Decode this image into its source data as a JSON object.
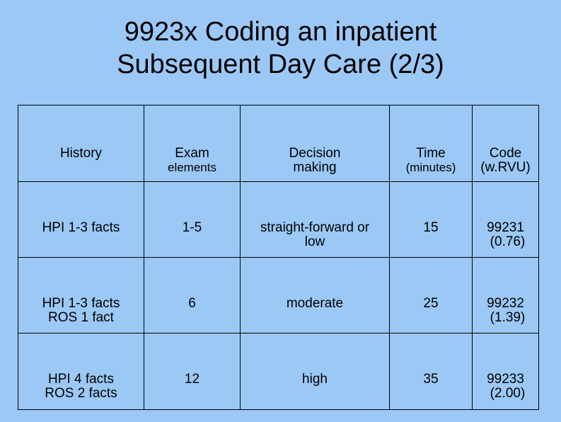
{
  "title": {
    "line1": "9923x Coding an inpatient",
    "line2": "Subsequent Day Care (2/3)"
  },
  "table": {
    "headers": [
      {
        "main": "History",
        "sub": ""
      },
      {
        "main": "Exam",
        "sub": "elements"
      },
      {
        "main": "Decision",
        "sub": "making"
      },
      {
        "main": "Time",
        "sub": "(minutes)"
      },
      {
        "main": "Code",
        "sub": "(w.RVU)"
      }
    ],
    "rows": [
      {
        "history": [
          "HPI 1-3 facts",
          ""
        ],
        "exam": "1-5",
        "decision": [
          "straight-forward or",
          "low"
        ],
        "time": "15",
        "code": "99231",
        "rvu": "(0.76)"
      },
      {
        "history": [
          "HPI 1-3 facts",
          "ROS 1 fact"
        ],
        "exam": "6",
        "decision": [
          "moderate",
          ""
        ],
        "time": "25",
        "code": "99232",
        "rvu": "(1.39)"
      },
      {
        "history": [
          "HPI 4 facts",
          "ROS 2 facts"
        ],
        "exam": "12",
        "decision": [
          "high",
          ""
        ],
        "time": "35",
        "code": "99233",
        "rvu": "(2.00)"
      }
    ]
  }
}
